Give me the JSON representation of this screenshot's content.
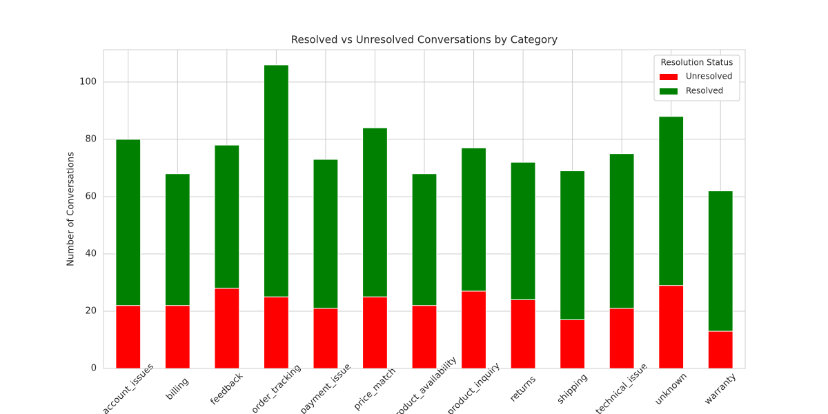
{
  "chart_data": {
    "type": "stacked_bar",
    "title": "Resolved vs Unresolved Conversations by Category",
    "y_label": "Number of Conversations",
    "categories": [
      "account_issues",
      "billing",
      "feedback",
      "order_tracking",
      "payment_issue",
      "price_match",
      "product_availability",
      "product_inquiry",
      "returns",
      "shipping",
      "technical_issue",
      "unknown",
      "warranty"
    ],
    "series": [
      {
        "name": "Unresolved",
        "color": "#ff0000",
        "values": [
          22,
          22,
          28,
          25,
          21,
          25,
          22,
          27,
          24,
          17,
          21,
          29,
          13
        ]
      },
      {
        "name": "Resolved",
        "color": "#008000",
        "values": [
          58,
          46,
          50,
          81,
          52,
          59,
          46,
          50,
          48,
          52,
          54,
          59,
          49
        ]
      }
    ],
    "legend_title": "Resolution Status",
    "legend_position": "upper right",
    "ylim": [
      0,
      111.3
    ],
    "yticks": [
      0,
      20,
      40,
      60,
      80,
      100
    ],
    "grid": true
  }
}
